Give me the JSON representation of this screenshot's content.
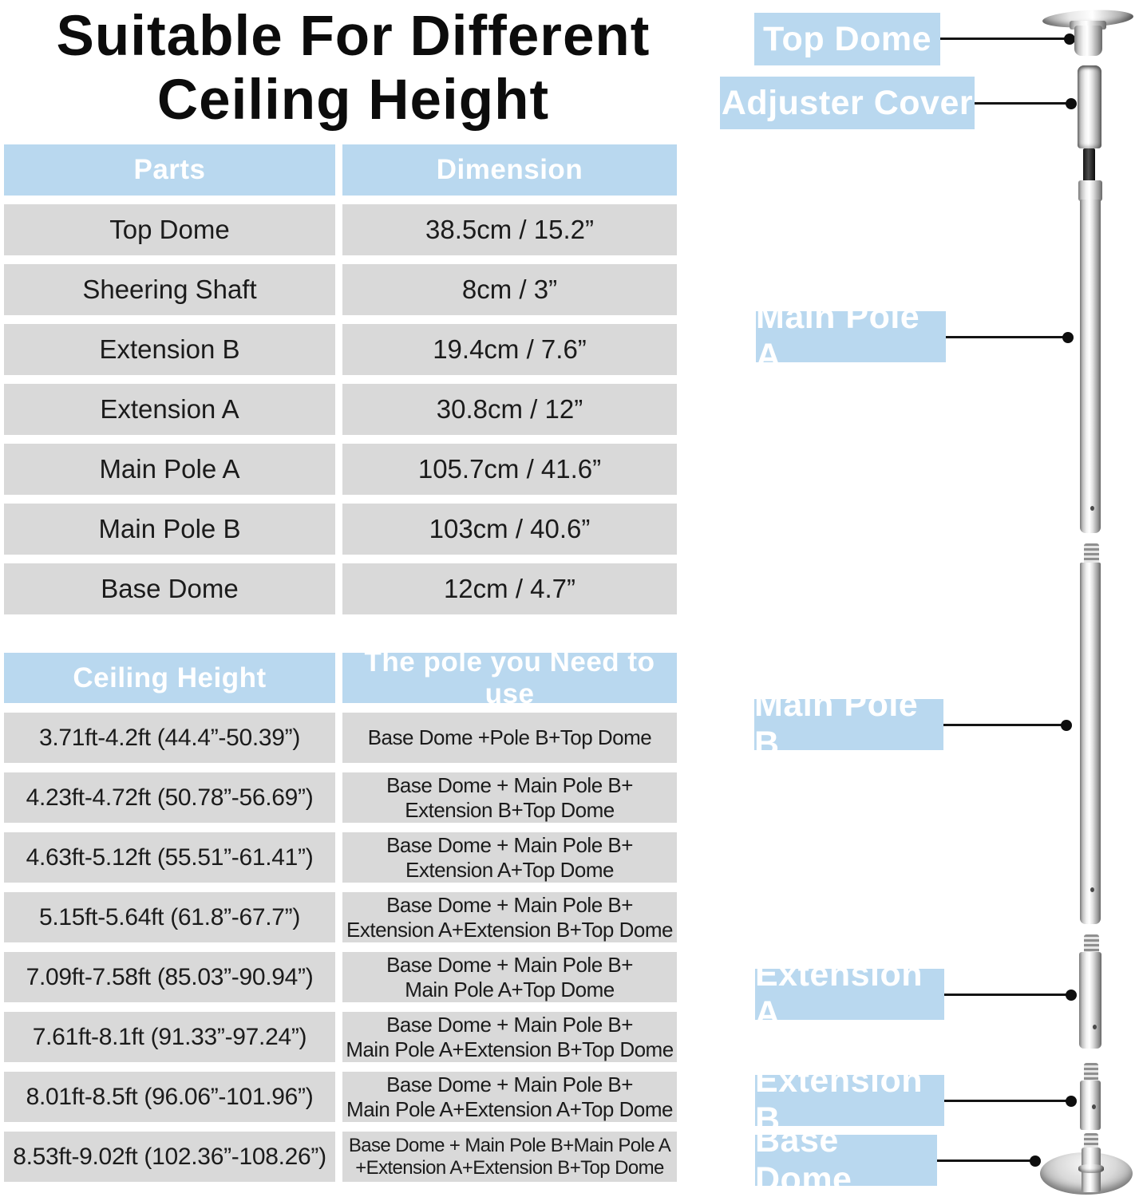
{
  "title": {
    "line1": "Suitable For Different",
    "line2": "Ceiling Height"
  },
  "parts_table": {
    "headers": [
      "Parts",
      "Dimension"
    ],
    "rows": [
      [
        "Top Dome",
        "38.5cm / 15.2”"
      ],
      [
        "Sheering Shaft",
        "8cm / 3”"
      ],
      [
        "Extension B",
        "19.4cm / 7.6”"
      ],
      [
        "Extension A",
        "30.8cm / 12”"
      ],
      [
        "Main Pole A",
        "105.7cm / 41.6”"
      ],
      [
        "Main Pole B",
        "103cm / 40.6”"
      ],
      [
        "Base Dome",
        "12cm / 4.7”"
      ]
    ]
  },
  "height_table": {
    "headers": [
      "Ceiling Height",
      "The pole you Need to use"
    ],
    "rows": [
      [
        "3.71ft-4.2ft (44.4”-50.39”)",
        "Base Dome +Pole B+Top Dome"
      ],
      [
        "4.23ft-4.72ft (50.78”-56.69”)",
        "Base Dome + Main Pole B+\nExtension B+Top Dome"
      ],
      [
        "4.63ft-5.12ft (55.51”-61.41”)",
        "Base Dome + Main Pole B+\nExtension A+Top Dome"
      ],
      [
        "5.15ft-5.64ft (61.8”-67.7”)",
        "Base Dome + Main Pole B+\nExtension A+Extension B+Top Dome"
      ],
      [
        "7.09ft-7.58ft (85.03”-90.94”)",
        "Base Dome + Main Pole B+\nMain Pole A+Top Dome"
      ],
      [
        "7.61ft-8.1ft (91.33”-97.24”)",
        "Base Dome + Main Pole B+\nMain Pole A+Extension B+Top Dome"
      ],
      [
        "8.01ft-8.5ft (96.06”-101.96”)",
        "Base Dome + Main Pole B+\nMain Pole A+Extension A+Top Dome"
      ],
      [
        "8.53ft-9.02ft (102.36”-108.26”)",
        "Base Dome + Main Pole B+Main Pole A\n+Extension A+Extension B+Top Dome"
      ]
    ]
  },
  "diagram": {
    "labels": {
      "top_dome": "Top Dome",
      "adjuster_cover": "Adjuster Cover",
      "main_pole_a": "Main Pole A",
      "main_pole_b": "Main Pole B",
      "extension_a": "Extension A",
      "extension_b": "Extension B",
      "base_dome": "Base Dome"
    }
  },
  "colors": {
    "accent_blue": "#b9d8ef",
    "row_gray": "#d9d9d9",
    "text_dark": "#161616"
  }
}
